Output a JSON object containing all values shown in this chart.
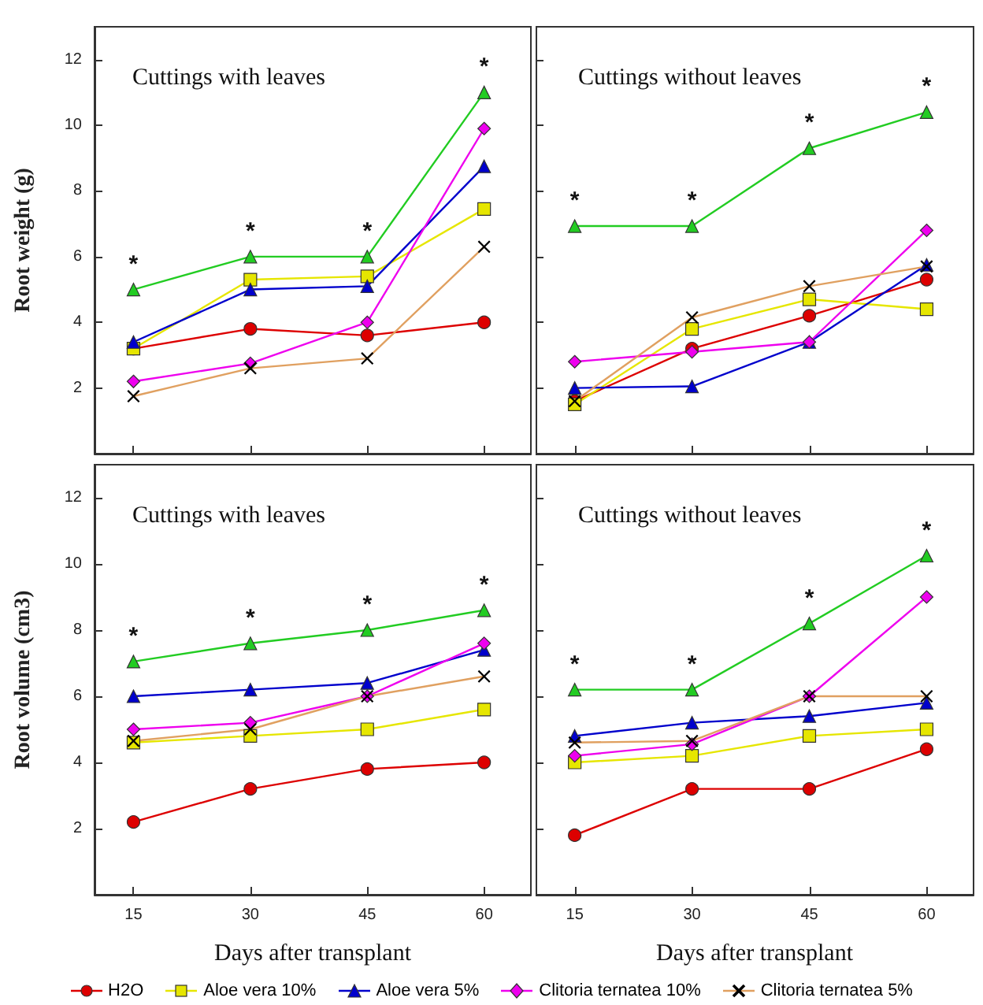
{
  "chart_data": [
    {
      "type": "line",
      "title": "Cuttings with leaves",
      "ylabel": "Root weight (g)",
      "x": [
        15,
        30,
        45,
        60
      ],
      "xlim": [
        10,
        66
      ],
      "ylim": [
        0,
        13
      ],
      "xticks": [
        15,
        30,
        45,
        60
      ],
      "yticks": [
        2,
        4,
        6,
        8,
        10,
        12
      ],
      "tick_labels": "y",
      "line_style": "solid",
      "series": [
        {
          "color": "#dd0000",
          "marker": "circle",
          "values": [
            3.2,
            3.8,
            3.6,
            4.0
          ]
        },
        {
          "color": "#22cc22",
          "marker": "triangle",
          "values": [
            5.0,
            6.0,
            6.0,
            11.0
          ]
        },
        {
          "color": "#e6e600",
          "marker": "square",
          "values": [
            3.2,
            5.3,
            5.4,
            7.45
          ]
        },
        {
          "color": "#0000cc",
          "marker": "triangle",
          "values": [
            3.4,
            5.0,
            5.1,
            8.75
          ]
        },
        {
          "color": "#ee00ee",
          "marker": "diamond",
          "values": [
            2.2,
            2.75,
            4.0,
            9.9
          ]
        },
        {
          "color": "#e0a060",
          "marker": "cross",
          "values": [
            1.75,
            2.6,
            2.9,
            6.3
          ]
        }
      ],
      "annotations": [
        "*",
        "*",
        "*",
        "*"
      ]
    },
    {
      "type": "line",
      "title": "Cuttings without leaves",
      "x": [
        15,
        30,
        45,
        60
      ],
      "xlim": [
        10,
        66
      ],
      "ylim": [
        0,
        13
      ],
      "xticks": [
        15,
        30,
        45,
        60
      ],
      "yticks": [
        2,
        4,
        6,
        8,
        10,
        12
      ],
      "tick_labels": false,
      "line_style": "solid",
      "series": [
        {
          "color": "#dd0000",
          "marker": "circle",
          "values": [
            1.6,
            3.2,
            4.2,
            5.3
          ]
        },
        {
          "color": "#22cc22",
          "marker": "triangle",
          "values": [
            6.93,
            6.93,
            9.3,
            10.4
          ]
        },
        {
          "color": "#e6e600",
          "marker": "square",
          "values": [
            1.5,
            3.8,
            4.7,
            4.4
          ]
        },
        {
          "color": "#0000cc",
          "marker": "triangle",
          "values": [
            2.0,
            2.05,
            3.4,
            5.75
          ]
        },
        {
          "color": "#ee00ee",
          "marker": "diamond",
          "values": [
            2.8,
            3.1,
            3.4,
            6.8
          ]
        },
        {
          "color": "#e0a060",
          "marker": "cross",
          "values": [
            1.6,
            4.15,
            5.1,
            5.7
          ]
        }
      ],
      "annotations": [
        "*",
        "*",
        "*",
        "*"
      ]
    },
    {
      "type": "line",
      "title": "Cuttings with leaves",
      "ylabel": "Root volume (cm3)",
      "xlabel": "Days after transplant",
      "x": [
        15,
        30,
        45,
        60
      ],
      "xlim": [
        10,
        66
      ],
      "ylim": [
        0,
        13
      ],
      "xticks": [
        15,
        30,
        45,
        60
      ],
      "yticks": [
        2,
        4,
        6,
        8,
        10,
        12
      ],
      "line_style": "solid",
      "legend": "bottom",
      "series": [
        {
          "name": "H2O",
          "color": "#dd0000",
          "marker": "circle",
          "values": [
            2.2,
            3.2,
            3.8,
            4.0
          ]
        },
        {
          "color": "#22cc22",
          "marker": "triangle",
          "values": [
            7.05,
            7.6,
            8.0,
            8.6
          ]
        },
        {
          "name": "Aloe vera 10%",
          "color": "#e6e600",
          "marker": "square",
          "values": [
            4.6,
            4.8,
            5.0,
            5.6
          ]
        },
        {
          "name": "Aloe vera 5%",
          "color": "#0000cc",
          "marker": "triangle",
          "values": [
            6.0,
            6.2,
            6.4,
            7.4
          ]
        },
        {
          "name": "Clitoria ternatea 10%",
          "color": "#ee00ee",
          "marker": "diamond",
          "values": [
            5.0,
            5.2,
            6.0,
            7.6
          ]
        },
        {
          "name": "Clitoria ternatea 5%",
          "color": "#e0a060",
          "marker": "cross",
          "values": [
            4.65,
            5.0,
            6.0,
            6.6
          ]
        }
      ],
      "annotations": [
        "*",
        "*",
        "*",
        "*"
      ]
    },
    {
      "type": "line",
      "title": "Cuttings without leaves",
      "xlabel": "Days after transplant",
      "x": [
        15,
        30,
        45,
        60
      ],
      "xlim": [
        10,
        66
      ],
      "ylim": [
        0,
        13
      ],
      "xticks": [
        15,
        30,
        45,
        60
      ],
      "yticks": [
        2,
        4,
        6,
        8,
        10,
        12
      ],
      "tick_labels": "x",
      "line_style": "solid",
      "series": [
        {
          "color": "#dd0000",
          "marker": "circle",
          "values": [
            1.8,
            3.2,
            3.2,
            4.4
          ]
        },
        {
          "color": "#22cc22",
          "marker": "triangle",
          "values": [
            6.2,
            6.2,
            8.2,
            10.25
          ]
        },
        {
          "color": "#e6e600",
          "marker": "square",
          "values": [
            4.0,
            4.2,
            4.8,
            5.0
          ]
        },
        {
          "color": "#0000cc",
          "marker": "triangle",
          "values": [
            4.8,
            5.2,
            5.4,
            5.8
          ]
        },
        {
          "color": "#ee00ee",
          "marker": "diamond",
          "values": [
            4.2,
            4.55,
            6.0,
            9.0
          ]
        },
        {
          "color": "#e0a060",
          "marker": "cross",
          "values": [
            4.6,
            4.65,
            6.0,
            6.0
          ]
        }
      ],
      "annotations": [
        "*",
        "*",
        "*",
        "*"
      ]
    }
  ]
}
